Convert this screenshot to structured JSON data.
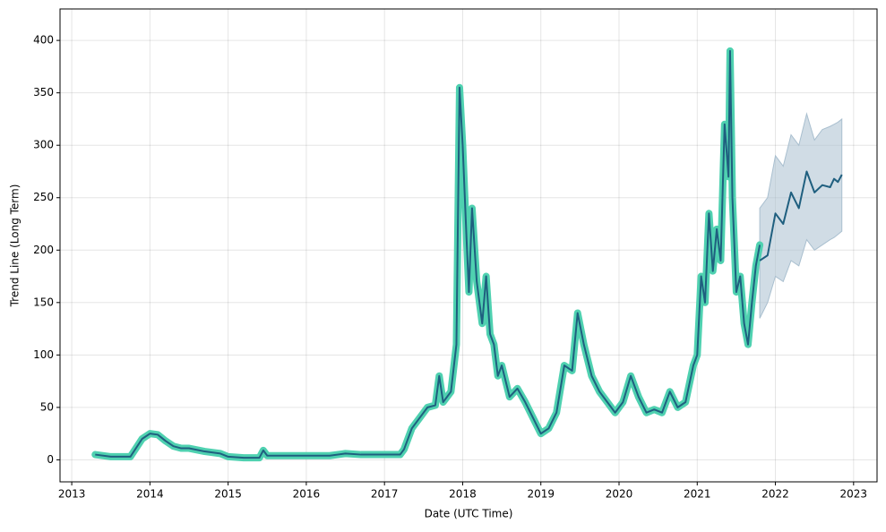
{
  "chart_data": {
    "type": "line",
    "x_label": "Date (UTC Time)",
    "y_label": "Trend Line (Long Term)",
    "xlim": [
      2012.85,
      2023.3
    ],
    "ylim": [
      -21,
      430
    ],
    "xticks": [
      2013,
      2014,
      2015,
      2016,
      2017,
      2018,
      2019,
      2020,
      2021,
      2022,
      2023
    ],
    "yticks": [
      0,
      50,
      100,
      150,
      200,
      250,
      300,
      350,
      400
    ],
    "grid": true,
    "series": [
      {
        "color": "#1f5f7f",
        "halo_color": "#4fd1b0",
        "x": [
          2013.3,
          2013.5,
          2013.75,
          2013.9,
          2014.0,
          2014.1,
          2014.2,
          2014.3,
          2014.4,
          2014.5,
          2014.7,
          2014.9,
          2015.0,
          2015.2,
          2015.4,
          2015.45,
          2015.5,
          2015.7,
          2016.0,
          2016.3,
          2016.5,
          2016.7,
          2017.0,
          2017.2,
          2017.25,
          2017.35,
          2017.45,
          2017.55,
          2017.65,
          2017.7,
          2017.75,
          2017.85,
          2017.92,
          2017.96,
          2018.0,
          2018.05,
          2018.08,
          2018.12,
          2018.18,
          2018.25,
          2018.3,
          2018.35,
          2018.4,
          2018.45,
          2018.5,
          2018.6,
          2018.7,
          2018.8,
          2018.9,
          2019.0,
          2019.1,
          2019.2,
          2019.3,
          2019.4,
          2019.47,
          2019.55,
          2019.65,
          2019.75,
          2019.85,
          2019.95,
          2020.05,
          2020.15,
          2020.25,
          2020.35,
          2020.45,
          2020.55,
          2020.65,
          2020.75,
          2020.85,
          2020.95,
          2021.0,
          2021.05,
          2021.1,
          2021.15,
          2021.2,
          2021.25,
          2021.3,
          2021.35,
          2021.4,
          2021.42,
          2021.45,
          2021.5,
          2021.55,
          2021.6,
          2021.65,
          2021.7,
          2021.75,
          2021.8
        ],
        "values": [
          5,
          3,
          3,
          20,
          25,
          24,
          18,
          13,
          11,
          11,
          8,
          6,
          3,
          2,
          2,
          9,
          4,
          4,
          4,
          4,
          6,
          5,
          5,
          5,
          10,
          30,
          40,
          50,
          52,
          80,
          55,
          65,
          110,
          355,
          300,
          210,
          160,
          240,
          170,
          130,
          175,
          120,
          110,
          80,
          90,
          60,
          68,
          55,
          40,
          25,
          30,
          45,
          90,
          85,
          140,
          110,
          80,
          65,
          55,
          45,
          55,
          80,
          60,
          45,
          48,
          45,
          65,
          50,
          55,
          90,
          100,
          175,
          150,
          235,
          180,
          220,
          190,
          320,
          270,
          390,
          250,
          160,
          175,
          130,
          110,
          150,
          185,
          205
        ]
      },
      {
        "color": "#1f5f7f",
        "x": [
          2021.8,
          2021.9,
          2022.0,
          2022.1,
          2022.2,
          2022.3,
          2022.4,
          2022.5,
          2022.6,
          2022.7,
          2022.75,
          2022.8,
          2022.85
        ],
        "values": [
          190,
          195,
          235,
          225,
          255,
          240,
          275,
          255,
          262,
          260,
          268,
          265,
          272
        ]
      }
    ],
    "band": {
      "color": "#a9bfcf",
      "x": [
        2021.8,
        2021.9,
        2022.0,
        2022.1,
        2022.2,
        2022.3,
        2022.4,
        2022.5,
        2022.6,
        2022.7,
        2022.75,
        2022.8,
        2022.85
      ],
      "lower": [
        135,
        150,
        175,
        170,
        190,
        185,
        210,
        200,
        205,
        210,
        212,
        215,
        218
      ],
      "upper": [
        240,
        250,
        290,
        280,
        310,
        300,
        330,
        305,
        315,
        318,
        320,
        322,
        325
      ]
    }
  }
}
